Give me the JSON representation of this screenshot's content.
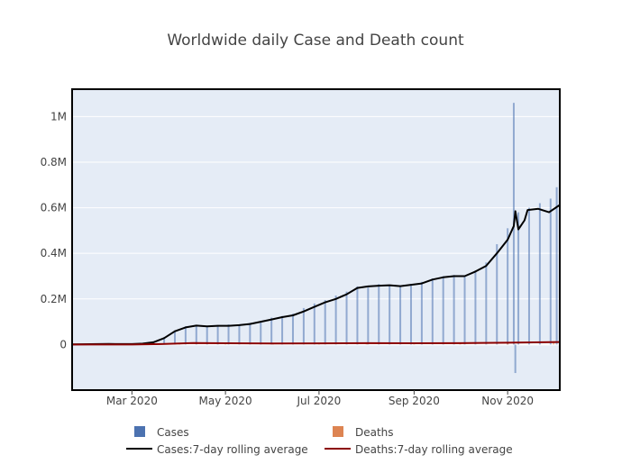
{
  "chart_data": {
    "type": "bar",
    "title": "Worldwide daily Case and Death count",
    "xlabel": "",
    "ylabel": "",
    "x_range": [
      "2020-01-22",
      "2020-12-05"
    ],
    "ylim": [
      -200000,
      1120000
    ],
    "y_ticks": [
      {
        "value": 0,
        "label": "0"
      },
      {
        "value": 200000,
        "label": "0.2M"
      },
      {
        "value": 400000,
        "label": "0.4M"
      },
      {
        "value": 600000,
        "label": "0.6M"
      },
      {
        "value": 800000,
        "label": "0.8M"
      },
      {
        "value": 1000000,
        "label": "1M"
      }
    ],
    "x_ticks": [
      {
        "date": "2020-03-01",
        "label": "Mar 2020"
      },
      {
        "date": "2020-05-01",
        "label": "May 2020"
      },
      {
        "date": "2020-07-01",
        "label": "Jul 2020"
      },
      {
        "date": "2020-09-01",
        "label": "Sep 2020"
      },
      {
        "date": "2020-11-01",
        "label": "Nov 2020"
      }
    ],
    "grid": true,
    "legend_position": "bottom",
    "series": [
      {
        "name": "Cases",
        "kind": "bar",
        "color": "#4c72b0",
        "points": [
          [
            "2020-01-25",
            2000
          ],
          [
            "2020-02-01",
            2500
          ],
          [
            "2020-02-08",
            3000
          ],
          [
            "2020-02-15",
            5000
          ],
          [
            "2020-02-22",
            1500
          ],
          [
            "2020-03-01",
            2000
          ],
          [
            "2020-03-08",
            4000
          ],
          [
            "2020-03-15",
            12000
          ],
          [
            "2020-03-22",
            32000
          ],
          [
            "2020-03-29",
            62000
          ],
          [
            "2020-04-05",
            80000
          ],
          [
            "2020-04-12",
            85000
          ],
          [
            "2020-04-19",
            82000
          ],
          [
            "2020-04-26",
            85000
          ],
          [
            "2020-05-03",
            88000
          ],
          [
            "2020-05-10",
            85000
          ],
          [
            "2020-05-17",
            95000
          ],
          [
            "2020-05-24",
            102000
          ],
          [
            "2020-05-31",
            118000
          ],
          [
            "2020-06-07",
            125000
          ],
          [
            "2020-06-14",
            135000
          ],
          [
            "2020-06-21",
            160000
          ],
          [
            "2020-06-28",
            180000
          ],
          [
            "2020-07-05",
            195000
          ],
          [
            "2020-07-12",
            215000
          ],
          [
            "2020-07-19",
            232000
          ],
          [
            "2020-07-26",
            255000
          ],
          [
            "2020-08-02",
            250000
          ],
          [
            "2020-08-09",
            265000
          ],
          [
            "2020-08-16",
            260000
          ],
          [
            "2020-08-23",
            255000
          ],
          [
            "2020-08-30",
            265000
          ],
          [
            "2020-09-06",
            275000
          ],
          [
            "2020-09-13",
            290000
          ],
          [
            "2020-09-20",
            300000
          ],
          [
            "2020-09-27",
            305000
          ],
          [
            "2020-10-04",
            300000
          ],
          [
            "2020-10-11",
            325000
          ],
          [
            "2020-10-18",
            360000
          ],
          [
            "2020-10-25",
            440000
          ],
          [
            "2020-11-01",
            510000
          ],
          [
            "2020-11-05",
            1060000
          ],
          [
            "2020-11-06",
            -125000
          ],
          [
            "2020-11-08",
            580000
          ],
          [
            "2020-11-15",
            600000
          ],
          [
            "2020-11-22",
            620000
          ],
          [
            "2020-11-29",
            640000
          ],
          [
            "2020-12-03",
            690000
          ]
        ]
      },
      {
        "name": "Deaths",
        "kind": "bar",
        "color": "#dd8452",
        "points": [
          [
            "2020-03-01",
            100
          ],
          [
            "2020-04-01",
            5000
          ],
          [
            "2020-05-01",
            5000
          ],
          [
            "2020-06-01",
            4500
          ],
          [
            "2020-07-01",
            5000
          ],
          [
            "2020-08-01",
            6000
          ],
          [
            "2020-09-01",
            5500
          ],
          [
            "2020-10-01",
            6000
          ],
          [
            "2020-11-01",
            8000
          ],
          [
            "2020-12-01",
            11000
          ]
        ]
      },
      {
        "name": "Cases:7-day rolling average",
        "kind": "line",
        "color": "#000000",
        "points": [
          [
            "2020-01-22",
            600
          ],
          [
            "2020-02-15",
            2500
          ],
          [
            "2020-03-01",
            2000
          ],
          [
            "2020-03-08",
            4000
          ],
          [
            "2020-03-15",
            10000
          ],
          [
            "2020-03-22",
            28000
          ],
          [
            "2020-03-29",
            58000
          ],
          [
            "2020-04-05",
            75000
          ],
          [
            "2020-04-12",
            83000
          ],
          [
            "2020-04-19",
            80000
          ],
          [
            "2020-04-26",
            82000
          ],
          [
            "2020-05-03",
            82000
          ],
          [
            "2020-05-10",
            85000
          ],
          [
            "2020-05-17",
            90000
          ],
          [
            "2020-05-24",
            100000
          ],
          [
            "2020-05-31",
            110000
          ],
          [
            "2020-06-07",
            120000
          ],
          [
            "2020-06-14",
            128000
          ],
          [
            "2020-06-21",
            145000
          ],
          [
            "2020-06-28",
            165000
          ],
          [
            "2020-07-05",
            185000
          ],
          [
            "2020-07-12",
            200000
          ],
          [
            "2020-07-19",
            220000
          ],
          [
            "2020-07-26",
            248000
          ],
          [
            "2020-08-02",
            255000
          ],
          [
            "2020-08-09",
            258000
          ],
          [
            "2020-08-16",
            260000
          ],
          [
            "2020-08-23",
            256000
          ],
          [
            "2020-08-30",
            262000
          ],
          [
            "2020-09-06",
            268000
          ],
          [
            "2020-09-13",
            285000
          ],
          [
            "2020-09-20",
            295000
          ],
          [
            "2020-09-27",
            300000
          ],
          [
            "2020-10-04",
            300000
          ],
          [
            "2020-10-11",
            320000
          ],
          [
            "2020-10-18",
            345000
          ],
          [
            "2020-10-25",
            400000
          ],
          [
            "2020-11-01",
            460000
          ],
          [
            "2020-11-05",
            520000
          ],
          [
            "2020-11-06",
            585000
          ],
          [
            "2020-11-08",
            505000
          ],
          [
            "2020-11-12",
            545000
          ],
          [
            "2020-11-14",
            590000
          ],
          [
            "2020-11-21",
            595000
          ],
          [
            "2020-11-28",
            580000
          ],
          [
            "2020-12-05",
            612000
          ]
        ]
      },
      {
        "name": "Deaths:7-day rolling average",
        "kind": "line",
        "color": "#8b0000",
        "points": [
          [
            "2020-01-22",
            0
          ],
          [
            "2020-03-01",
            100
          ],
          [
            "2020-03-20",
            2000
          ],
          [
            "2020-04-10",
            6500
          ],
          [
            "2020-05-01",
            5500
          ],
          [
            "2020-06-01",
            4500
          ],
          [
            "2020-07-01",
            5000
          ],
          [
            "2020-08-01",
            5800
          ],
          [
            "2020-09-01",
            5500
          ],
          [
            "2020-10-01",
            5800
          ],
          [
            "2020-11-01",
            8000
          ],
          [
            "2020-12-05",
            11000
          ]
        ]
      }
    ],
    "legend": [
      {
        "label": "Cases",
        "symbol": "square",
        "color": "#4c72b0"
      },
      {
        "label": "Deaths",
        "symbol": "square",
        "color": "#dd8452"
      },
      {
        "label": "Cases:7-day rolling average",
        "symbol": "line",
        "color": "#000000"
      },
      {
        "label": "Deaths:7-day rolling average",
        "symbol": "line",
        "color": "#8b0000"
      }
    ]
  }
}
